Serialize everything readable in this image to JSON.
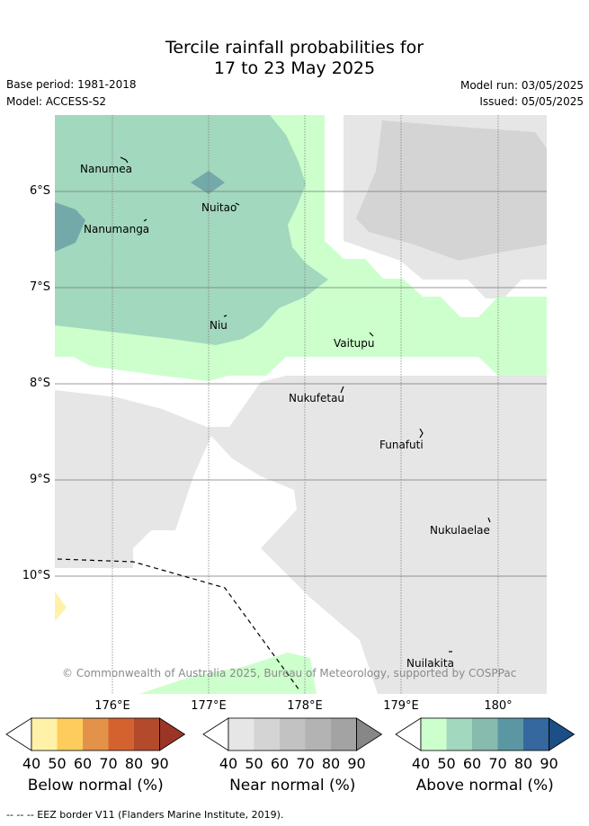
{
  "title_line1": "Tercile rainfall probabilities for",
  "title_line2": "17 to 23 May 2025",
  "base_period": "Base period: 1981-2018",
  "model": "Model: ACCESS-S2",
  "model_run": "Model run: 03/05/2025",
  "issued": "Issued: 05/05/2025",
  "copyright": "© Commonwealth of Australia 2025, Bureau of Meteorology, supported by COSPPac",
  "footer": "--  --  -- EEZ border V11 (Flanders Marine Institute, 2019).",
  "lat_labels": [
    "6°S",
    "7°S",
    "8°S",
    "9°S",
    "10°S"
  ],
  "lon_labels": [
    "176°E",
    "177°E",
    "178°E",
    "179°E",
    "180°"
  ],
  "islands": [
    "Nanumea",
    "Nuitao",
    "Nanumanga",
    "Niu",
    "Vaitupu",
    "Nukufetau",
    "Funafuti",
    "Nukulaelae",
    "Nuilakita"
  ],
  "colorbars": [
    {
      "title": "Below normal (%)",
      "ticks": [
        "40",
        "50",
        "60",
        "70",
        "80",
        "90"
      ],
      "colors": [
        "#ffffff",
        "#fff2a8",
        "#fecc5c",
        "#e3924a",
        "#d4622f",
        "#b34a2b",
        "#9c3527"
      ]
    },
    {
      "title": "Near normal (%)",
      "ticks": [
        "40",
        "50",
        "60",
        "70",
        "80",
        "90"
      ],
      "colors": [
        "#ffffff",
        "#e6e6e6",
        "#d4d4d4",
        "#c2c2c2",
        "#b3b3b3",
        "#a3a3a3",
        "#878787"
      ]
    },
    {
      "title": "Above normal (%)",
      "ticks": [
        "40",
        "50",
        "60",
        "70",
        "80",
        "90"
      ],
      "colors": [
        "#ffffff",
        "#ccffcc",
        "#a2d8bd",
        "#86bbad",
        "#5a97a3",
        "#34689e",
        "#1b4f86"
      ]
    }
  ]
}
